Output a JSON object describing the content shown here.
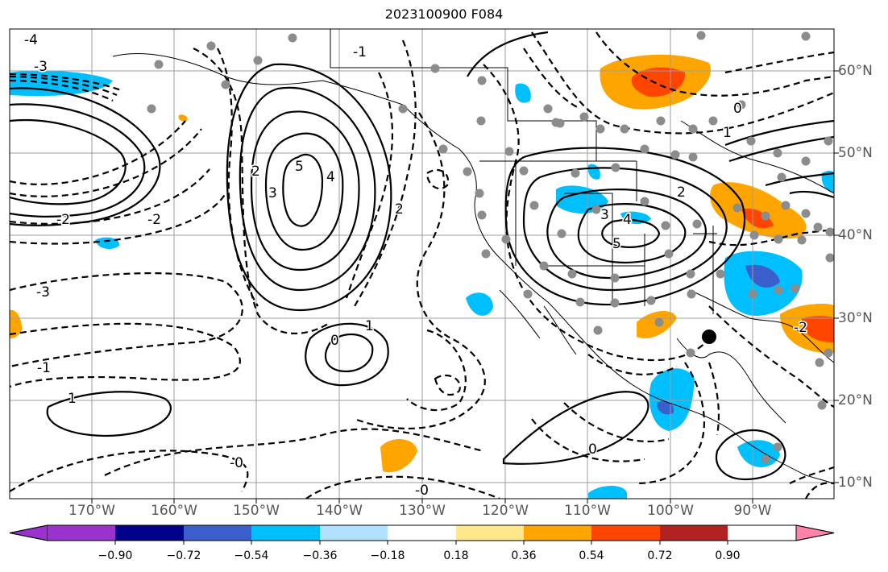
{
  "title": "2023100900 F084",
  "lon_labels": [
    "170°W",
    "160°W",
    "150°W",
    "140°W",
    "130°W",
    "120°W",
    "110°W",
    "100°W",
    "90°W"
  ],
  "lat_labels": [
    "60°N",
    "50°N",
    "40°N",
    "30°N",
    "20°N",
    "10°N"
  ],
  "colorbar": {
    "ticks": [
      "−0.90",
      "−0.72",
      "−0.54",
      "−0.36",
      "−0.18",
      "0.18",
      "0.36",
      "0.54",
      "0.72",
      "0.90"
    ],
    "colors": [
      "#9a32cd",
      "#00008b",
      "#3a5fcd",
      "#00bfff",
      "#b0e2ff",
      "#ffffff",
      "#ffe78b",
      "#ffa500",
      "#ff4500",
      "#b22222",
      "#ff82ab"
    ]
  },
  "contour_labels": [
    "5",
    "4",
    "3",
    "2",
    "1",
    "0",
    "-0",
    "-1",
    "-2",
    "-3",
    "-4",
    "5",
    "4",
    "3",
    "2",
    "1",
    "0",
    "-1",
    "-2",
    "-3",
    "0",
    "-0",
    "2",
    "-2",
    "1"
  ],
  "marker": "black-dot"
}
